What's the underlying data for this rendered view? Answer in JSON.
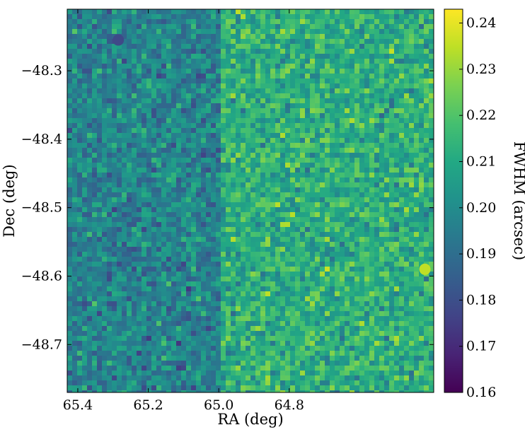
{
  "chart_data": {
    "type": "heatmap",
    "title": "",
    "xlabel": "RA (deg)",
    "ylabel": "Dec (deg)",
    "x_ticks": [
      65.4,
      65.2,
      65.0,
      64.8
    ],
    "x_tick_labels": [
      "65.4",
      "65.2",
      "65.0",
      "64.8"
    ],
    "y_ticks": [
      -48.3,
      -48.4,
      -48.5,
      -48.6,
      -48.7
    ],
    "y_tick_labels": [
      "−48.3",
      "−48.4",
      "−48.5",
      "−48.6",
      "−48.7"
    ],
    "xlim": [
      65.43,
      64.39
    ],
    "ylim": [
      -48.77,
      -48.21
    ],
    "x_reversed": true,
    "colormap": "viridis",
    "colorbar": {
      "label": "FWHM (arcsec)",
      "range": [
        0.16,
        0.243
      ],
      "ticks": [
        0.16,
        0.17,
        0.18,
        0.19,
        0.2,
        0.21,
        0.22,
        0.23,
        0.24
      ],
      "tick_labels": [
        "0.16",
        "0.17",
        "0.18",
        "0.19",
        "0.20",
        "0.21",
        "0.22",
        "0.23",
        "0.24"
      ]
    },
    "regions": [
      {
        "ra_range": [
          65.43,
          64.99
        ],
        "typical_fwhm": 0.197
      },
      {
        "ra_range": [
          64.99,
          64.39
        ],
        "typical_fwhm": 0.212
      }
    ],
    "features": [
      {
        "ra": 65.285,
        "dec": -48.255,
        "fwhm": 0.178
      },
      {
        "ra": 64.415,
        "dec": -48.59,
        "fwhm": 0.235
      }
    ]
  }
}
